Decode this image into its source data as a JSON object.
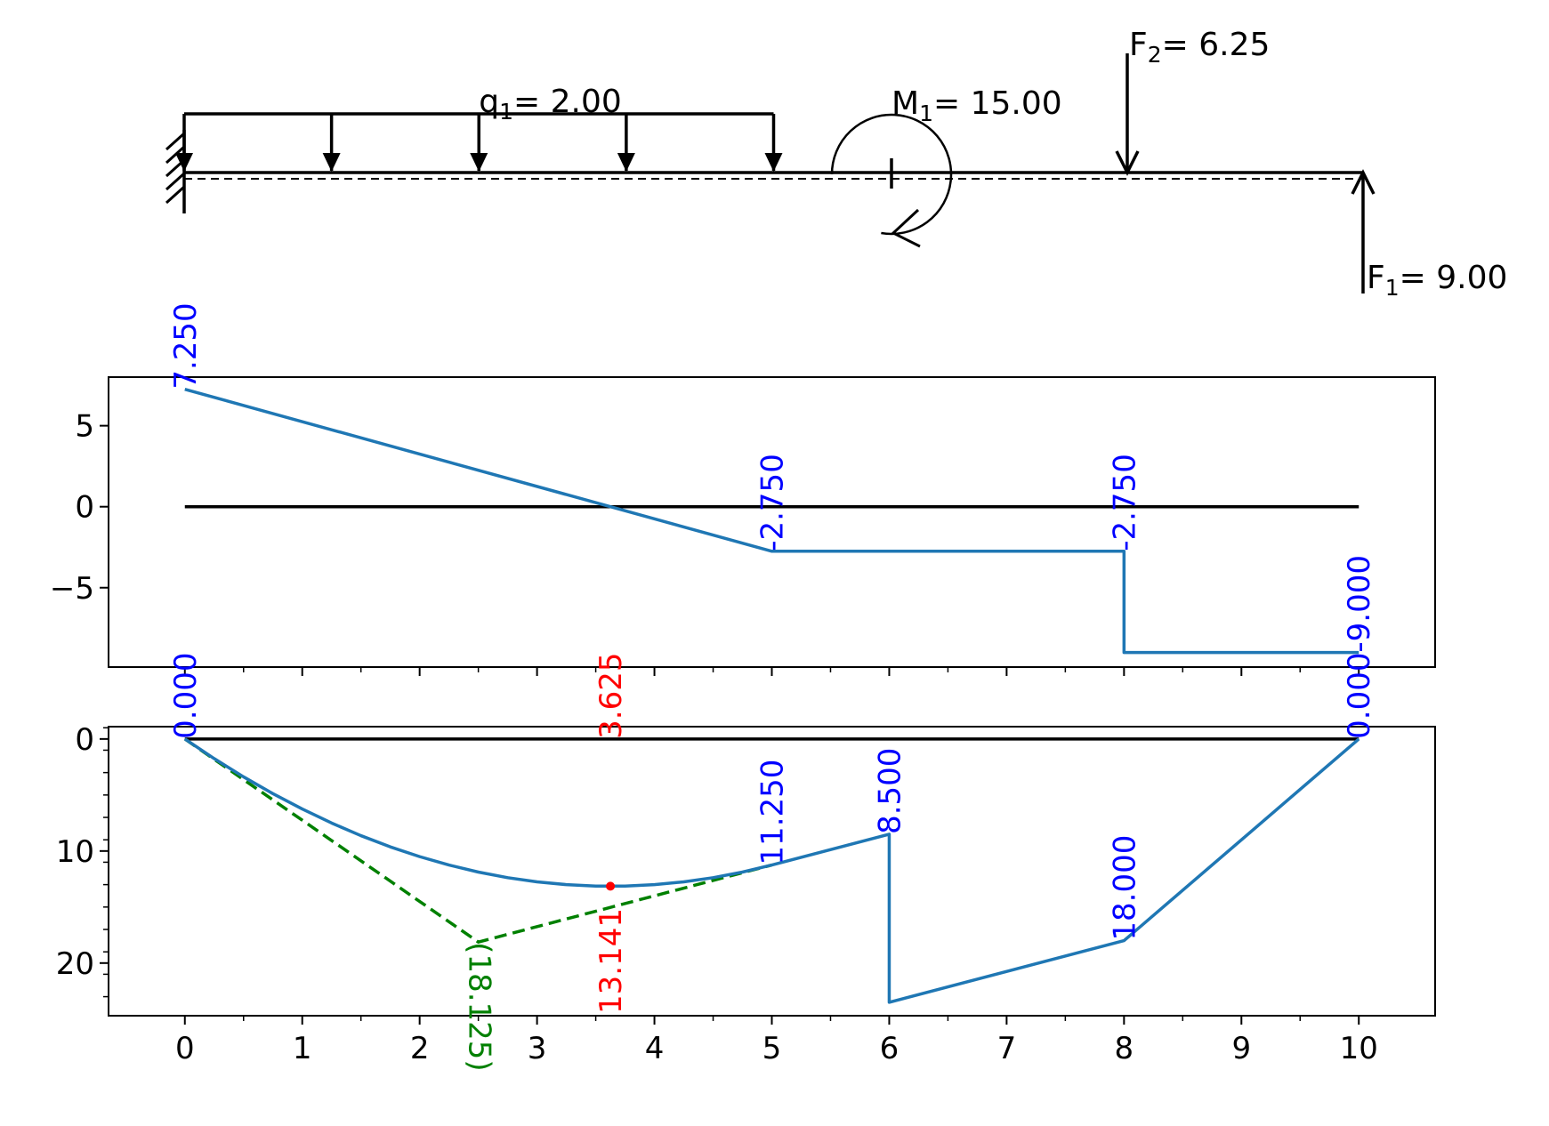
{
  "colors": {
    "ink": "#000000",
    "curve": "#1f77b4",
    "label_blue": "#0000ff",
    "label_red": "#ff0000",
    "label_green": "#008000"
  },
  "chart_data": [
    {
      "type": "diagram",
      "beam": {
        "x_start": 0,
        "x_end": 10
      },
      "support": {
        "kind": "fixed",
        "x": 0
      },
      "loads": [
        {
          "kind": "distributed",
          "name": "q",
          "sub": "1",
          "text": "= 2.00",
          "x_start": 0,
          "x_end": 5,
          "arrows_at": [
            0,
            1.25,
            2.5,
            3.75,
            5
          ],
          "label_x": 2.5
        },
        {
          "kind": "moment",
          "name": "M",
          "sub": "1",
          "text": "= 15.00",
          "x": 6
        },
        {
          "kind": "point",
          "name": "F",
          "sub": "2",
          "text": "= 6.25",
          "x": 8,
          "direction": "down"
        },
        {
          "kind": "point",
          "name": "F",
          "sub": "1",
          "text": "= 9.00",
          "x": 10,
          "direction": "up"
        }
      ]
    },
    {
      "type": "line",
      "ylim": [
        -9.9,
        8.0
      ],
      "yticks": [
        5,
        0,
        -5
      ],
      "ytick_labels": [
        "5",
        "0",
        "−5"
      ],
      "xlim": [
        -0.65,
        10.65
      ],
      "x": [
        0,
        5,
        8,
        8,
        10
      ],
      "y": [
        7.25,
        -2.75,
        -2.75,
        -9.0,
        -9.0
      ],
      "baseline": {
        "x": [
          0,
          10
        ],
        "y": 0
      },
      "labels": [
        {
          "x": 0,
          "y": 7.25,
          "text": "7.250",
          "color": "blue"
        },
        {
          "x": 5,
          "y": -2.75,
          "text": "-2.750",
          "color": "blue"
        },
        {
          "x": 8,
          "y": -2.75,
          "text": "-2.750",
          "color": "blue"
        },
        {
          "x": 10,
          "y": -9.0,
          "text": "-9.000",
          "color": "blue"
        }
      ]
    },
    {
      "type": "line",
      "y_inverted": true,
      "ylim": [
        -1.1,
        24.7
      ],
      "yticks": [
        0,
        10,
        20
      ],
      "ytick_labels": [
        "0",
        "10",
        "20"
      ],
      "xlim": [
        -0.65,
        10.65
      ],
      "xticks": [
        0,
        1,
        2,
        3,
        4,
        5,
        6,
        7,
        8,
        9,
        10
      ],
      "xtick_labels": [
        "0",
        "1",
        "2",
        "3",
        "4",
        "5",
        "6",
        "7",
        "8",
        "9",
        "10"
      ],
      "x": [
        0,
        0.25,
        0.5,
        0.75,
        1,
        1.25,
        1.5,
        1.75,
        2,
        2.25,
        2.5,
        2.75,
        3,
        3.25,
        3.5,
        3.75,
        4,
        4.25,
        4.5,
        4.75,
        5,
        6,
        6,
        8,
        10
      ],
      "y": [
        0,
        1.75,
        3.38,
        4.88,
        6.25,
        7.5,
        8.63,
        9.63,
        10.5,
        11.25,
        11.88,
        12.38,
        12.75,
        13.0,
        13.13,
        13.13,
        13.0,
        12.75,
        12.38,
        11.88,
        11.25,
        8.5,
        23.5,
        18.0,
        0
      ],
      "baseline": {
        "x": [
          0,
          10
        ],
        "y": 0
      },
      "dashed": {
        "x": [
          0,
          2.5,
          5
        ],
        "y": [
          0,
          18.125,
          11.25
        ],
        "color": "green"
      },
      "marker": {
        "x": 3.625,
        "y": 13.141,
        "color": "red"
      },
      "labels": [
        {
          "x": 0,
          "y": 0,
          "text": "0.000",
          "color": "blue"
        },
        {
          "x": 5,
          "y": 11.25,
          "text": "11.250",
          "color": "blue"
        },
        {
          "x": 6,
          "y": 8.5,
          "text": "8.500",
          "color": "blue"
        },
        {
          "x": 8,
          "y": 18.0,
          "text": "18.000",
          "color": "blue"
        },
        {
          "x": 10,
          "y": 0,
          "text": "0.000",
          "color": "blue"
        },
        {
          "x": 3.625,
          "y": 0,
          "text": "3.625",
          "color": "red"
        },
        {
          "x": 3.625,
          "y": 13.141,
          "text": "13.141",
          "color": "red"
        },
        {
          "x": 2.5,
          "y": 18.125,
          "text": "(18.125)",
          "color": "green"
        }
      ]
    }
  ]
}
